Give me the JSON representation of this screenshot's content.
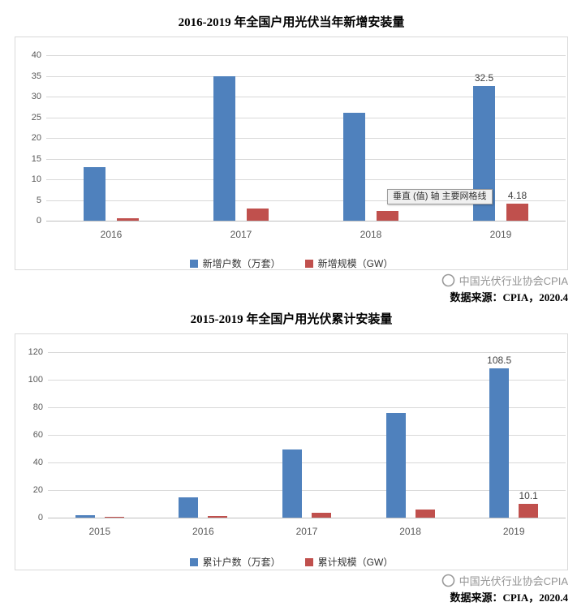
{
  "tooltip": {
    "text": "垂直 (值) 轴 主要网格线"
  },
  "chart_data": [
    {
      "type": "bar",
      "title": "2016-2019 年全国户用光伏当年新增安装量",
      "categories": [
        "2016",
        "2017",
        "2018",
        "2019"
      ],
      "series": [
        {
          "name": "新增户数（万套）",
          "color": "#4F81BD",
          "values": [
            13,
            35,
            26,
            32.5
          ],
          "point_labels": [
            null,
            null,
            null,
            "32.5"
          ]
        },
        {
          "name": "新增规模（GW）",
          "color": "#C0504D",
          "values": [
            0.5,
            2.9,
            2.3,
            4.18
          ],
          "point_labels": [
            null,
            null,
            null,
            "4.18"
          ]
        }
      ],
      "ylim": [
        0,
        40
      ],
      "yticks": [
        0,
        5,
        10,
        15,
        20,
        25,
        30,
        35,
        40
      ],
      "grid": true,
      "legend_position": "bottom",
      "watermark": "中国光伏行业协会CPIA",
      "source": "数据来源：CPIA，2020.4"
    },
    {
      "type": "bar",
      "title": "2015-2019 年全国户用光伏累计安装量",
      "categories": [
        "2015",
        "2016",
        "2017",
        "2018",
        "2019"
      ],
      "series": [
        {
          "name": "累计户数（万套）",
          "color": "#4F81BD",
          "values": [
            2,
            15,
            49.5,
            76,
            108.5
          ],
          "point_labels": [
            null,
            null,
            null,
            null,
            "108.5"
          ]
        },
        {
          "name": "累计规模（GW）",
          "color": "#C0504D",
          "values": [
            0.7,
            1.2,
            3.6,
            5.9,
            10.1
          ],
          "point_labels": [
            null,
            null,
            null,
            null,
            "10.1"
          ]
        }
      ],
      "ylim": [
        0,
        120
      ],
      "yticks": [
        0,
        20,
        40,
        60,
        80,
        100,
        120
      ],
      "grid": true,
      "legend_position": "bottom",
      "watermark": "中国光伏行业协会CPIA",
      "source": "数据来源：CPIA，2020.4"
    }
  ]
}
